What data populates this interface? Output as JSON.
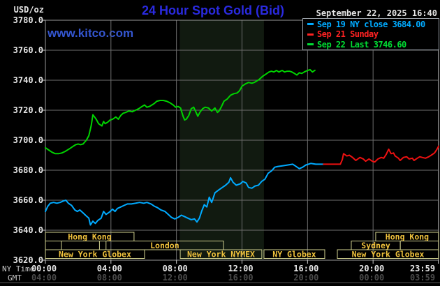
{
  "header": {
    "datetime": "September 22, 2025 16:40",
    "watermark": "www.kitco.com"
  },
  "legend": {
    "items": [
      {
        "label": "Sep 19 NY close 3684.00",
        "color": "#00aaff"
      },
      {
        "label": "Sep 21 Sunday",
        "color": "#ff2222"
      },
      {
        "label": "Sep 22 Last 3746.60",
        "color": "#00dd33"
      }
    ]
  },
  "colors": {
    "background": "#000000",
    "title_blue": "#2a2ae0",
    "kitco_blue": "#3456d0",
    "white_text": "#e6e6e6",
    "gmt_text": "#4a4a4a",
    "caption_text": "#c8c8c8",
    "grid": "#6e6e6e",
    "plot_border": "#989898",
    "tick": "#cccccc",
    "legend_border": "#9aa0a8",
    "session_border": "#cfcf8e",
    "session_text": "#f0c23c",
    "shaded_band": "#111a10",
    "bottom_divider": "#5a5a5a",
    "series_cyan": "#00aaff",
    "series_red": "#ee1111",
    "series_green": "#00d300"
  },
  "chart_data": {
    "type": "line",
    "title": "24 Hour Spot Gold (Bid)",
    "y_axis": {
      "unit": "USD/oz",
      "range": [
        3620,
        3780
      ],
      "tick_step": 20,
      "ticks": [
        "3780.0",
        "3760.0",
        "3740.0",
        "3720.0",
        "3700.0",
        "3680.0",
        "3660.0",
        "3640.0",
        "3620.0"
      ]
    },
    "x_axis": {
      "label_top": "NY Time",
      "label_bottom": "GMT",
      "range_hours": [
        0,
        24
      ],
      "tick_hours": [
        0,
        4,
        8,
        12,
        16,
        20,
        23.983
      ],
      "ny_labels": [
        "00:00",
        "04:00",
        "08:00",
        "12:00",
        "16:00",
        "20:00",
        "23:59"
      ],
      "gmt_labels": [
        "04:00",
        "08:00",
        "12:00",
        "16:00",
        "20:00",
        "00:00",
        "03:59"
      ]
    },
    "nymex_shaded_hours": [
      8.2,
      13.34
    ],
    "sessions": [
      {
        "row": 0,
        "start": 0,
        "end": 5.41,
        "label": "Hong Kong"
      },
      {
        "row": 0,
        "start": 20.16,
        "end": 24,
        "label": "Hong Kong"
      },
      {
        "row": 1,
        "start": 0,
        "end": 0.98,
        "label": ""
      },
      {
        "row": 1,
        "start": 0.98,
        "end": 3.3,
        "label": ""
      },
      {
        "row": 1,
        "start": 3.7,
        "end": 10.87,
        "label": "London"
      },
      {
        "row": 1,
        "start": 18.67,
        "end": 21.66,
        "label": "Sydney"
      },
      {
        "row": 1,
        "start": 21.66,
        "end": 24,
        "label": ""
      },
      {
        "row": 2,
        "start": 0,
        "end": 6.05,
        "label": "New York Globex"
      },
      {
        "row": 2,
        "start": 8.23,
        "end": 13.21,
        "label": "New York NYMEX"
      },
      {
        "row": 2,
        "start": 13.34,
        "end": 17.05,
        "label": "NY Globex"
      },
      {
        "row": 2,
        "start": 17.82,
        "end": 24,
        "label": "New York Globex"
      }
    ],
    "series": [
      {
        "name": "Sep 19 NY close",
        "color": "#00aaff",
        "width": 2,
        "points": [
          [
            0,
            3652.5
          ],
          [
            0.15,
            3656
          ],
          [
            0.3,
            3658
          ],
          [
            0.5,
            3658.5
          ],
          [
            0.7,
            3658
          ],
          [
            0.9,
            3658.5
          ],
          [
            1.1,
            3659.5
          ],
          [
            1.25,
            3660
          ],
          [
            1.4,
            3658
          ],
          [
            1.6,
            3656.5
          ],
          [
            1.8,
            3653.5
          ],
          [
            1.95,
            3652.5
          ],
          [
            2.1,
            3653.5
          ],
          [
            2.3,
            3651.5
          ],
          [
            2.5,
            3649.5
          ],
          [
            2.65,
            3648
          ],
          [
            2.75,
            3643.5
          ],
          [
            2.9,
            3646
          ],
          [
            3.05,
            3644.5
          ],
          [
            3.2,
            3646.5
          ],
          [
            3.4,
            3648
          ],
          [
            3.55,
            3652.5
          ],
          [
            3.7,
            3650.5
          ],
          [
            3.9,
            3652
          ],
          [
            4.1,
            3654
          ],
          [
            4.25,
            3652.5
          ],
          [
            4.4,
            3654.5
          ],
          [
            4.6,
            3655.5
          ],
          [
            4.8,
            3656.5
          ],
          [
            5.0,
            3657.5
          ],
          [
            5.25,
            3657.5
          ],
          [
            5.5,
            3658
          ],
          [
            5.75,
            3658.5
          ],
          [
            6.0,
            3658
          ],
          [
            6.2,
            3658.5
          ],
          [
            6.45,
            3657.5
          ],
          [
            6.65,
            3656
          ],
          [
            6.85,
            3655
          ],
          [
            7.05,
            3653.5
          ],
          [
            7.3,
            3652.5
          ],
          [
            7.5,
            3650.5
          ],
          [
            7.7,
            3648.5
          ],
          [
            7.9,
            3647.5
          ],
          [
            8.1,
            3648.5
          ],
          [
            8.3,
            3650
          ],
          [
            8.5,
            3649
          ],
          [
            8.7,
            3648
          ],
          [
            8.9,
            3647
          ],
          [
            9.1,
            3647.5
          ],
          [
            9.25,
            3645.5
          ],
          [
            9.4,
            3648
          ],
          [
            9.55,
            3653
          ],
          [
            9.7,
            3657
          ],
          [
            9.85,
            3655.5
          ],
          [
            10.0,
            3662
          ],
          [
            10.15,
            3658.5
          ],
          [
            10.35,
            3665
          ],
          [
            10.6,
            3667
          ],
          [
            10.8,
            3668.5
          ],
          [
            11.0,
            3670
          ],
          [
            11.2,
            3672
          ],
          [
            11.3,
            3675
          ],
          [
            11.45,
            3672
          ],
          [
            11.65,
            3670
          ],
          [
            11.9,
            3671
          ],
          [
            12.05,
            3672.5
          ],
          [
            12.25,
            3671.5
          ],
          [
            12.4,
            3668.5
          ],
          [
            12.6,
            3668
          ],
          [
            12.8,
            3669.5
          ],
          [
            13.0,
            3670
          ],
          [
            13.2,
            3672.5
          ],
          [
            13.4,
            3674
          ],
          [
            13.6,
            3678
          ],
          [
            13.8,
            3679.5
          ],
          [
            14.0,
            3682
          ],
          [
            14.2,
            3682.5
          ],
          [
            14.5,
            3683
          ],
          [
            14.8,
            3683.5
          ],
          [
            15.1,
            3684
          ],
          [
            15.3,
            3682.5
          ],
          [
            15.5,
            3681
          ],
          [
            15.7,
            3682
          ],
          [
            15.9,
            3683.5
          ],
          [
            16.2,
            3684.5
          ],
          [
            16.5,
            3684
          ],
          [
            16.97,
            3684
          ]
        ]
      },
      {
        "name": "Sep 21 Sunday",
        "color": "#ee1111",
        "width": 2,
        "points": [
          [
            16.97,
            3684
          ],
          [
            18.0,
            3684
          ],
          [
            18.12,
            3687
          ],
          [
            18.2,
            3691
          ],
          [
            18.4,
            3689.5
          ],
          [
            18.55,
            3690
          ],
          [
            18.75,
            3688.5
          ],
          [
            18.95,
            3686.5
          ],
          [
            19.2,
            3688.5
          ],
          [
            19.4,
            3687.5
          ],
          [
            19.55,
            3686
          ],
          [
            19.75,
            3687.5
          ],
          [
            19.95,
            3686
          ],
          [
            20.1,
            3685.5
          ],
          [
            20.3,
            3687.5
          ],
          [
            20.5,
            3688.5
          ],
          [
            20.65,
            3688
          ],
          [
            20.8,
            3690.5
          ],
          [
            20.95,
            3694
          ],
          [
            21.1,
            3691
          ],
          [
            21.25,
            3691.5
          ],
          [
            21.35,
            3689.5
          ],
          [
            21.55,
            3688
          ],
          [
            21.65,
            3686.5
          ],
          [
            21.85,
            3688.5
          ],
          [
            22.05,
            3689
          ],
          [
            22.2,
            3687.5
          ],
          [
            22.4,
            3688
          ],
          [
            22.5,
            3686.5
          ],
          [
            22.7,
            3688
          ],
          [
            22.85,
            3689
          ],
          [
            23.0,
            3688.5
          ],
          [
            23.2,
            3688
          ],
          [
            23.4,
            3689
          ],
          [
            23.55,
            3690
          ],
          [
            23.75,
            3691.5
          ],
          [
            23.9,
            3694
          ],
          [
            24.0,
            3696
          ]
        ]
      },
      {
        "name": "Sep 22 Last",
        "color": "#00d300",
        "width": 2,
        "points": [
          [
            0,
            3695
          ],
          [
            0.2,
            3693.5
          ],
          [
            0.4,
            3692
          ],
          [
            0.6,
            3691
          ],
          [
            0.8,
            3691
          ],
          [
            1.0,
            3691.5
          ],
          [
            1.2,
            3692.5
          ],
          [
            1.5,
            3694.5
          ],
          [
            1.7,
            3696
          ],
          [
            1.85,
            3697
          ],
          [
            2.0,
            3697.5
          ],
          [
            2.15,
            3697
          ],
          [
            2.3,
            3697.5
          ],
          [
            2.5,
            3700
          ],
          [
            2.65,
            3703
          ],
          [
            2.8,
            3710
          ],
          [
            2.9,
            3717
          ],
          [
            3.0,
            3715.5
          ],
          [
            3.1,
            3714
          ],
          [
            3.25,
            3711
          ],
          [
            3.45,
            3709.5
          ],
          [
            3.55,
            3712.5
          ],
          [
            3.65,
            3711
          ],
          [
            3.8,
            3712
          ],
          [
            3.95,
            3713.5
          ],
          [
            4.1,
            3714
          ],
          [
            4.3,
            3715.5
          ],
          [
            4.45,
            3714
          ],
          [
            4.6,
            3716.5
          ],
          [
            4.75,
            3718
          ],
          [
            4.9,
            3718.5
          ],
          [
            5.1,
            3719.5
          ],
          [
            5.3,
            3719
          ],
          [
            5.5,
            3720
          ],
          [
            5.7,
            3721
          ],
          [
            5.9,
            3722.5
          ],
          [
            6.05,
            3723.5
          ],
          [
            6.2,
            3722
          ],
          [
            6.35,
            3722.5
          ],
          [
            6.5,
            3723.5
          ],
          [
            6.65,
            3724.5
          ],
          [
            6.8,
            3726
          ],
          [
            7.0,
            3726.5
          ],
          [
            7.2,
            3726.5
          ],
          [
            7.4,
            3726
          ],
          [
            7.6,
            3725
          ],
          [
            7.8,
            3723.5
          ],
          [
            7.95,
            3722
          ],
          [
            8.1,
            3722.5
          ],
          [
            8.25,
            3721.5
          ],
          [
            8.4,
            3716
          ],
          [
            8.5,
            3713.5
          ],
          [
            8.6,
            3714
          ],
          [
            8.75,
            3716.5
          ],
          [
            8.9,
            3721
          ],
          [
            9.05,
            3722
          ],
          [
            9.2,
            3718.5
          ],
          [
            9.3,
            3716
          ],
          [
            9.45,
            3719
          ],
          [
            9.6,
            3721
          ],
          [
            9.75,
            3722
          ],
          [
            9.95,
            3721.5
          ],
          [
            10.15,
            3719.5
          ],
          [
            10.35,
            3721.5
          ],
          [
            10.5,
            3718.5
          ],
          [
            10.6,
            3719.5
          ],
          [
            10.75,
            3722.5
          ],
          [
            10.9,
            3726
          ],
          [
            11.1,
            3727.5
          ],
          [
            11.3,
            3730
          ],
          [
            11.5,
            3731
          ],
          [
            11.7,
            3731.5
          ],
          [
            11.85,
            3733
          ],
          [
            12.0,
            3736
          ],
          [
            12.2,
            3737.5
          ],
          [
            12.4,
            3738.5
          ],
          [
            12.6,
            3738
          ],
          [
            12.75,
            3738.5
          ],
          [
            12.9,
            3739.5
          ],
          [
            13.05,
            3740.5
          ],
          [
            13.25,
            3742.5
          ],
          [
            13.45,
            3744
          ],
          [
            13.65,
            3745.5
          ],
          [
            13.8,
            3746
          ],
          [
            13.95,
            3745.5
          ],
          [
            14.1,
            3746.5
          ],
          [
            14.25,
            3745.5
          ],
          [
            14.45,
            3746.5
          ],
          [
            14.6,
            3745.5
          ],
          [
            14.75,
            3746
          ],
          [
            14.9,
            3746
          ],
          [
            15.05,
            3745.5
          ],
          [
            15.2,
            3744.5
          ],
          [
            15.35,
            3743.5
          ],
          [
            15.5,
            3745
          ],
          [
            15.65,
            3744.5
          ],
          [
            15.8,
            3745.5
          ],
          [
            16.0,
            3746.5
          ],
          [
            16.15,
            3747
          ],
          [
            16.3,
            3745.5
          ],
          [
            16.45,
            3746.6
          ]
        ]
      }
    ]
  }
}
